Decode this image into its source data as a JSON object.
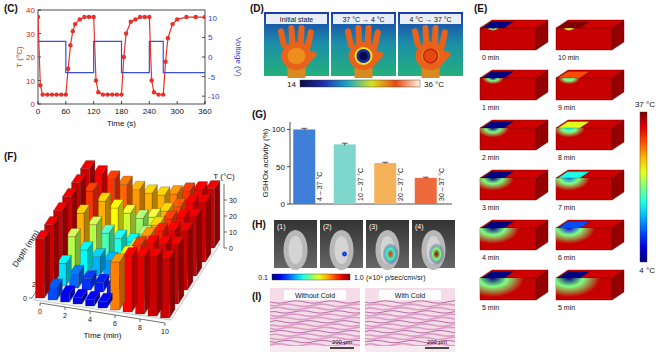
{
  "chart_data": [
    {
      "type": "line",
      "title": "(C)",
      "x_label": "Time (s)",
      "y_label": "T (°C)",
      "y2_label": "Voltage (V)",
      "xlim": [
        0,
        360
      ],
      "xticks": [
        0,
        60,
        120,
        180,
        240,
        300,
        360
      ],
      "ylim": [
        0,
        40
      ],
      "yticks": [
        0,
        10,
        20,
        30,
        40
      ],
      "y2lim": [
        -12,
        12
      ],
      "y2ticks": [
        -10,
        -5,
        0,
        5,
        10
      ],
      "series": [
        {
          "color": "#e8302a",
          "marker": "circle",
          "line_style": "solid",
          "x": [
            0,
            5,
            10,
            20,
            30,
            40,
            50,
            60,
            65,
            70,
            75,
            80,
            90,
            100,
            110,
            120,
            125,
            130,
            140,
            150,
            160,
            170,
            180,
            185,
            190,
            200,
            210,
            220,
            230,
            240,
            245,
            250,
            260,
            270,
            275,
            280,
            290,
            300,
            320,
            340,
            360
          ],
          "values": [
            37,
            8,
            4,
            4,
            4,
            4,
            4,
            4,
            15,
            25,
            31,
            34,
            36,
            37,
            37,
            37,
            10,
            5,
            4,
            4,
            4,
            4,
            4,
            20,
            30,
            35,
            36,
            37,
            37,
            37,
            10,
            5,
            4,
            4,
            18,
            28,
            34,
            36,
            37,
            37,
            37
          ]
        },
        {
          "color": "#3a4fd8",
          "axis": "y2",
          "line_style": "solid",
          "x": [
            0,
            60,
            60,
            120,
            120,
            180,
            180,
            240,
            240,
            270,
            270,
            360
          ],
          "values": [
            4,
            4,
            -4,
            -4,
            4,
            4,
            -4,
            -4,
            4,
            4,
            -4,
            -4
          ]
        }
      ]
    },
    {
      "type": "bar",
      "title": "(G)",
      "y_label": "GSHOx activity (%)",
      "categories": [
        "4 – 37 °C",
        "10 – 37 °C",
        "20 – 37 °C",
        "30 – 37 °C"
      ],
      "values": [
        100,
        80,
        55,
        35
      ],
      "errors": [
        1.5,
        1.5,
        1,
        1
      ],
      "colors": [
        "#3f7fd8",
        "#7fd6cc",
        "#f5b25a",
        "#ee6a3c"
      ],
      "ylim": [
        0,
        110
      ],
      "yticks": [
        0,
        50,
        100
      ]
    },
    {
      "type": "bar3d",
      "title": "(F)",
      "x_label": "Time (min)",
      "y_label": "Depth (mm)",
      "z_label": "T (°C)",
      "x": [
        0,
        1,
        2,
        3,
        4,
        5,
        6,
        7,
        8,
        9,
        10
      ],
      "y": [
        0,
        2,
        4,
        6,
        8,
        10
      ],
      "xlim": [
        0,
        10
      ],
      "ylim": [
        0,
        10
      ],
      "zlim": [
        0,
        40
      ],
      "xticks": [
        0,
        2,
        4,
        6,
        8,
        10
      ],
      "yticks": [
        0,
        2,
        4,
        6,
        8,
        10
      ],
      "zticks": [
        0,
        10,
        20,
        30
      ],
      "values": [
        [
          37,
          8,
          5,
          4,
          4,
          4,
          30,
          35,
          36,
          37,
          37
        ],
        [
          37,
          14,
          9,
          7,
          6,
          6,
          26,
          33,
          35,
          36,
          37
        ],
        [
          37,
          22,
          15,
          12,
          11,
          10,
          22,
          30,
          34,
          36,
          37
        ],
        [
          37,
          28,
          22,
          18,
          16,
          15,
          21,
          28,
          33,
          35,
          37
        ],
        [
          37,
          33,
          28,
          25,
          23,
          21,
          23,
          28,
          32,
          35,
          37
        ],
        [
          37,
          35,
          33,
          31,
          29,
          28,
          28,
          30,
          33,
          35,
          37
        ]
      ]
    }
  ],
  "thermal_images": {
    "title": "(D)",
    "labels": [
      "Initial state",
      "37 °C → 4 °C",
      "4 °C → 37 °C"
    ],
    "colorbar": {
      "min": 14,
      "max": {
        "value": 36,
        "label": "36 °C"
      }
    }
  },
  "simulation": {
    "title": "(E)",
    "frames": [
      "0 min",
      "1 min",
      "2 min",
      "3 min",
      "4 min",
      "5 min",
      "10 min",
      "9 min",
      "8 min",
      "7 min",
      "6 min",
      "5 min"
    ],
    "colorbar": {
      "max": {
        "value": 37,
        "label": "37 °C"
      },
      "min": {
        "value": 4,
        "label": "4 °C"
      }
    }
  },
  "bioluminescence": {
    "title": "(H)",
    "labels": [
      "(1)",
      "(2)",
      "(3)",
      "(4)"
    ],
    "colorbar": {
      "min": 0.1,
      "max": {
        "value": 1.0,
        "label": "1.0"
      },
      "unit": "(×10⁶ p/sec/cm²/sr)"
    }
  },
  "histology": {
    "title": "(I)",
    "labels": [
      "Without Cold",
      "With Cold"
    ],
    "scale_bar": "200 μm"
  }
}
